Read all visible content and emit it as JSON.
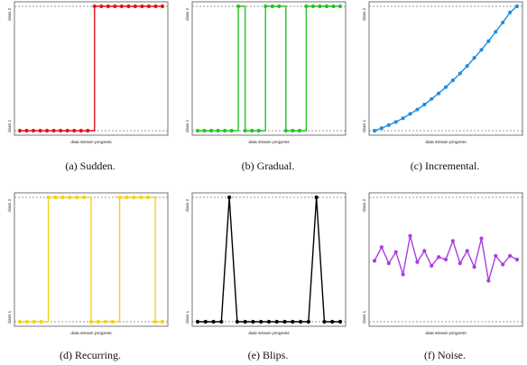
{
  "chart_data": [
    {
      "type": "line",
      "caption": "(a) Sudden.",
      "xlabel": "data stream progress",
      "ylabel_low": "class 1",
      "ylabel_high": "class 2",
      "color": "#e0141c",
      "draw": "step",
      "ylim": [
        0,
        1
      ],
      "y": [
        0,
        0,
        0,
        0,
        0,
        0,
        0,
        0,
        0,
        0,
        0,
        1,
        1,
        1,
        1,
        1,
        1,
        1,
        1,
        1,
        1,
        1
      ]
    },
    {
      "type": "line",
      "caption": "(b) Gradual.",
      "xlabel": "data stream progress",
      "ylabel_low": "class 1",
      "ylabel_high": "class 2",
      "color": "#27c227",
      "draw": "step",
      "ylim": [
        0,
        1
      ],
      "y": [
        0,
        0,
        0,
        0,
        0,
        0,
        1,
        0,
        0,
        0,
        1,
        1,
        1,
        0,
        0,
        0,
        1,
        1,
        1,
        1,
        1,
        1
      ]
    },
    {
      "type": "line",
      "caption": "(c) Incremental.",
      "xlabel": "data stream progress",
      "ylabel_low": "class 1",
      "ylabel_high": "class 2",
      "color": "#1f8ee0",
      "draw": "line",
      "ylim": [
        0,
        1
      ],
      "y": [
        0.0,
        0.02,
        0.045,
        0.07,
        0.1,
        0.135,
        0.17,
        0.21,
        0.255,
        0.3,
        0.35,
        0.405,
        0.46,
        0.52,
        0.585,
        0.65,
        0.72,
        0.795,
        0.87,
        0.95,
        1.0
      ]
    },
    {
      "type": "line",
      "caption": "(d) Recurring.",
      "xlabel": "data stream progress",
      "ylabel_low": "class 1",
      "ylabel_high": "class 2",
      "color": "#f2d21b",
      "draw": "step",
      "ylim": [
        0,
        1
      ],
      "y": [
        0,
        0,
        0,
        0,
        1,
        1,
        1,
        1,
        1,
        1,
        0,
        0,
        0,
        0,
        1,
        1,
        1,
        1,
        1,
        0,
        0
      ]
    },
    {
      "type": "line",
      "caption": "(e) Blips.",
      "xlabel": "data stream progress",
      "ylabel_low": "class 1",
      "ylabel_high": "class 2",
      "color": "#000000",
      "draw": "line",
      "ylim": [
        0,
        1
      ],
      "y": [
        0,
        0,
        0,
        0,
        1,
        0,
        0,
        0,
        0,
        0,
        0,
        0,
        0,
        0,
        0,
        1,
        0,
        0,
        0
      ]
    },
    {
      "type": "line",
      "caption": "(f) Noise.",
      "xlabel": "data stream progress",
      "ylabel_low": "class 1",
      "ylabel_high": "class 2",
      "color": "#a93ee0",
      "draw": "line",
      "ylim": [
        0,
        1
      ],
      "y": [
        0.49,
        0.6,
        0.47,
        0.56,
        0.38,
        0.69,
        0.48,
        0.57,
        0.45,
        0.52,
        0.5,
        0.65,
        0.47,
        0.57,
        0.44,
        0.67,
        0.33,
        0.53,
        0.46,
        0.53,
        0.5
      ]
    }
  ]
}
